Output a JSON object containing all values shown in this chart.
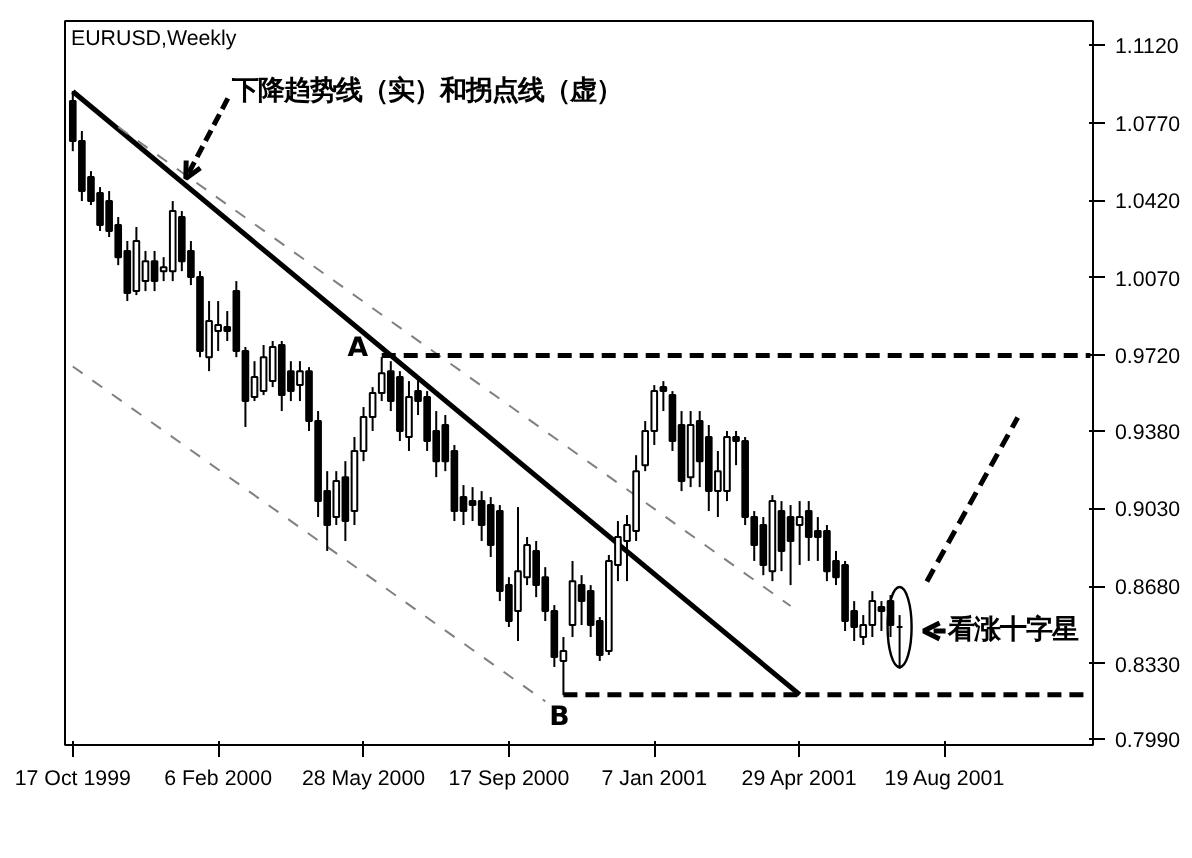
{
  "chart_data": {
    "type": "candlestick",
    "title": "EURUSD,Weekly",
    "x": [
      "1999-10-17",
      "1999-10-24",
      "1999-10-31",
      "1999-11-07",
      "1999-11-14",
      "1999-11-21",
      "1999-11-28",
      "1999-12-05",
      "1999-12-12",
      "1999-12-19",
      "1999-12-26",
      "2000-01-02",
      "2000-01-09",
      "2000-01-16",
      "2000-01-23",
      "2000-01-30",
      "2000-02-06",
      "2000-02-13",
      "2000-02-20",
      "2000-02-27",
      "2000-03-05",
      "2000-03-12",
      "2000-03-19",
      "2000-03-26",
      "2000-04-02",
      "2000-04-09",
      "2000-04-16",
      "2000-04-23",
      "2000-04-30",
      "2000-05-07",
      "2000-05-14",
      "2000-05-21",
      "2000-05-28",
      "2000-06-04",
      "2000-06-11",
      "2000-06-18",
      "2000-06-25",
      "2000-07-02",
      "2000-07-09",
      "2000-07-16",
      "2000-07-23",
      "2000-07-30",
      "2000-08-06",
      "2000-08-13",
      "2000-08-20",
      "2000-08-27",
      "2000-09-03",
      "2000-09-10",
      "2000-09-17",
      "2000-09-24",
      "2000-10-01",
      "2000-10-08",
      "2000-10-15",
      "2000-10-22",
      "2000-10-29",
      "2000-11-05",
      "2000-11-12",
      "2000-11-19",
      "2000-11-26",
      "2000-12-03",
      "2000-12-10",
      "2000-12-17",
      "2000-12-24",
      "2000-12-31",
      "2001-01-07",
      "2001-01-14",
      "2001-01-21",
      "2001-01-28",
      "2001-02-04",
      "2001-02-11",
      "2001-02-18",
      "2001-02-25",
      "2001-03-04",
      "2001-03-11",
      "2001-03-18",
      "2001-03-25",
      "2001-04-01",
      "2001-04-08",
      "2001-04-15",
      "2001-04-22",
      "2001-04-29",
      "2001-05-06",
      "2001-05-13",
      "2001-05-20",
      "2001-05-27",
      "2001-06-03",
      "2001-06-10",
      "2001-06-17",
      "2001-06-24",
      "2001-07-01",
      "2001-07-08",
      "2001-07-15"
    ],
    "ohlc": [
      [
        1.0867,
        1.0912,
        1.0641,
        1.0687
      ],
      [
        1.0687,
        1.0732,
        1.0416,
        1.0461
      ],
      [
        1.0524,
        1.0551,
        1.0398,
        1.0416
      ],
      [
        1.0452,
        1.0479,
        1.0281,
        1.0308
      ],
      [
        1.0416,
        1.0461,
        1.0254,
        1.0281
      ],
      [
        1.0308,
        1.0344,
        1.0127,
        1.0163
      ],
      [
        1.0191,
        1.0236,
        0.9965,
        1.0001
      ],
      [
        1.001,
        1.0299,
        0.9992,
        1.0236
      ],
      [
        1.0055,
        1.0191,
        1.001,
        1.0145
      ],
      [
        1.0145,
        1.0191,
        1.001,
        1.0055
      ],
      [
        1.01,
        1.0163,
        1.0055,
        1.0118
      ],
      [
        1.01,
        1.0416,
        1.0055,
        1.0371
      ],
      [
        1.0344,
        1.0371,
        1.01,
        1.0145
      ],
      [
        1.0191,
        1.0236,
        1.0037,
        1.0073
      ],
      [
        1.0073,
        1.01,
        0.9712,
        0.974
      ],
      [
        0.9712,
        0.9965,
        0.9649,
        0.9875
      ],
      [
        0.983,
        0.9965,
        0.974,
        0.9857
      ],
      [
        0.9848,
        0.992,
        0.9785,
        0.983
      ],
      [
        1.001,
        1.0055,
        0.9712,
        0.974
      ],
      [
        0.974,
        0.9758,
        0.9397,
        0.9514
      ],
      [
        0.9532,
        0.9694,
        0.9514,
        0.9622
      ],
      [
        0.9559,
        0.9767,
        0.9541,
        0.9712
      ],
      [
        0.9604,
        0.9785,
        0.9577,
        0.9758
      ],
      [
        0.9767,
        0.9785,
        0.9469,
        0.9541
      ],
      [
        0.9649,
        0.9694,
        0.9514,
        0.9559
      ],
      [
        0.9586,
        0.9694,
        0.9514,
        0.9649
      ],
      [
        0.9649,
        0.9667,
        0.9379,
        0.9424
      ],
      [
        0.9424,
        0.9469,
        0.8991,
        0.9063
      ],
      [
        0.9108,
        0.9198,
        0.8838,
        0.8955
      ],
      [
        0.8991,
        0.9198,
        0.8955,
        0.9153
      ],
      [
        0.9171,
        0.9243,
        0.8883,
        0.8973
      ],
      [
        0.9018,
        0.9352,
        0.8955,
        0.9289
      ],
      [
        0.9289,
        0.9487,
        0.9243,
        0.9442
      ],
      [
        0.9442,
        0.9577,
        0.9379,
        0.955
      ],
      [
        0.955,
        0.9712,
        0.9514,
        0.964
      ],
      [
        0.9649,
        0.9694,
        0.9469,
        0.9514
      ],
      [
        0.9622,
        0.9649,
        0.9334,
        0.9379
      ],
      [
        0.9352,
        0.9604,
        0.9289,
        0.9532
      ],
      [
        0.9559,
        0.9622,
        0.9451,
        0.9514
      ],
      [
        0.9532,
        0.9559,
        0.9289,
        0.9334
      ],
      [
        0.9379,
        0.9469,
        0.9171,
        0.9243
      ],
      [
        0.9406,
        0.9451,
        0.9198,
        0.9243
      ],
      [
        0.9289,
        0.9316,
        0.8973,
        0.9018
      ],
      [
        0.9081,
        0.9135,
        0.8955,
        0.9018
      ],
      [
        0.9063,
        0.9126,
        0.8973,
        0.9045
      ],
      [
        0.9063,
        0.9108,
        0.8883,
        0.8955
      ],
      [
        0.9045,
        0.9081,
        0.8811,
        0.8865
      ],
      [
        0.9018,
        0.9045,
        0.8612,
        0.8657
      ],
      [
        0.8684,
        0.872,
        0.8495,
        0.8522
      ],
      [
        0.8567,
        0.9036,
        0.8432,
        0.8747
      ],
      [
        0.872,
        0.8901,
        0.8684,
        0.8865
      ],
      [
        0.8838,
        0.8883,
        0.863,
        0.8684
      ],
      [
        0.872,
        0.8765,
        0.8522,
        0.8567
      ],
      [
        0.8567,
        0.8594,
        0.8315,
        0.836
      ],
      [
        0.8342,
        0.845,
        0.8188,
        0.8387
      ],
      [
        0.8504,
        0.8793,
        0.845,
        0.8702
      ],
      [
        0.8684,
        0.8729,
        0.8504,
        0.8612
      ],
      [
        0.8657,
        0.8684,
        0.845,
        0.8504
      ],
      [
        0.8522,
        0.854,
        0.8342,
        0.8369
      ],
      [
        0.8387,
        0.882,
        0.8369,
        0.8793
      ],
      [
        0.8775,
        0.8973,
        0.8702,
        0.8901
      ],
      [
        0.8883,
        0.9,
        0.8702,
        0.8955
      ],
      [
        0.8928,
        0.927,
        0.8883,
        0.9198
      ],
      [
        0.9225,
        0.9424,
        0.9198,
        0.9379
      ],
      [
        0.9379,
        0.9586,
        0.9316,
        0.9559
      ],
      [
        0.9577,
        0.9604,
        0.9469,
        0.9559
      ],
      [
        0.9541,
        0.9559,
        0.9289,
        0.9334
      ],
      [
        0.9406,
        0.9469,
        0.9108,
        0.9153
      ],
      [
        0.9171,
        0.9469,
        0.9126,
        0.9406
      ],
      [
        0.9424,
        0.9469,
        0.9126,
        0.9243
      ],
      [
        0.9352,
        0.9406,
        0.9018,
        0.9108
      ],
      [
        0.9108,
        0.9289,
        0.8991,
        0.9198
      ],
      [
        0.9108,
        0.9379,
        0.9063,
        0.9352
      ],
      [
        0.9352,
        0.9379,
        0.9225,
        0.9334
      ],
      [
        0.9334,
        0.9352,
        0.8955,
        0.8991
      ],
      [
        0.8991,
        0.9018,
        0.8793,
        0.8865
      ],
      [
        0.8955,
        0.8991,
        0.8729,
        0.8775
      ],
      [
        0.8747,
        0.909,
        0.8702,
        0.9063
      ],
      [
        0.9018,
        0.9063,
        0.8747,
        0.8838
      ],
      [
        0.8991,
        0.9045,
        0.8684,
        0.8883
      ],
      [
        0.8955,
        0.9063,
        0.8775,
        0.8991
      ],
      [
        0.9018,
        0.9063,
        0.8793,
        0.8901
      ],
      [
        0.8928,
        0.8991,
        0.8793,
        0.8901
      ],
      [
        0.8928,
        0.8955,
        0.8702,
        0.8747
      ],
      [
        0.8793,
        0.8838,
        0.8684,
        0.872
      ],
      [
        0.8775,
        0.8793,
        0.8477,
        0.8522
      ],
      [
        0.8567,
        0.8612,
        0.8432,
        0.8495
      ],
      [
        0.845,
        0.8549,
        0.8414,
        0.8504
      ],
      [
        0.8504,
        0.8657,
        0.845,
        0.8612
      ],
      [
        0.8585,
        0.8612,
        0.8477,
        0.8567
      ],
      [
        0.8612,
        0.8639,
        0.845,
        0.8504
      ],
      [
        0.8495,
        0.8549,
        0.8306,
        0.8495
      ]
    ],
    "series": [
      {
        "type": "line",
        "color": "#000000",
        "line_style": "solid",
        "x": [
          "1999-10-17",
          "2001-04-29"
        ],
        "values": [
          1.091,
          0.819
        ]
      },
      {
        "type": "line",
        "color": "#808080",
        "line_style": "dashed",
        "x": [
          "1999-11-21",
          "2001-04-22"
        ],
        "values": [
          1.075,
          0.859
        ]
      },
      {
        "type": "line",
        "color": "#808080",
        "line_style": "dashed",
        "x": [
          "1999-10-17",
          "2000-10-15"
        ],
        "values": [
          0.967,
          0.816
        ]
      },
      {
        "type": "line",
        "color": "#000000",
        "line_style": "dashed",
        "x": [
          "2000-06-11",
          "2001-12-09"
        ],
        "values": [
          0.972,
          0.972
        ]
      },
      {
        "type": "line",
        "color": "#000000",
        "line_style": "dashed",
        "x": [
          "2000-10-29",
          "2001-12-09"
        ],
        "values": [
          0.819,
          0.819
        ]
      },
      {
        "type": "line",
        "color": "#000000",
        "line_style": "dashed",
        "x": [
          "2001-08-05",
          "2001-10-14"
        ],
        "values": [
          0.87,
          0.944
        ]
      }
    ],
    "annotations": [
      {
        "text": "下降趋势线（实）和拐点线（虚）",
        "x": "2000-01-09",
        "y": 1.05
      },
      {
        "text": "A",
        "x": "2000-06-11",
        "y": 0.972
      },
      {
        "text": "B",
        "x": "2000-10-29",
        "y": 0.819
      },
      {
        "text": "看涨十字星",
        "x": "2001-07-15",
        "y": 0.8495
      }
    ],
    "xlim": [
      "1999-10-11",
      "2001-12-11"
    ],
    "ylim": [
      0.7963,
      1.1228
    ],
    "xticks": [
      {
        "value": "1999-10-17",
        "label": "17 Oct 1999"
      },
      {
        "value": "2000-02-06",
        "label": "6 Feb 2000"
      },
      {
        "value": "2000-05-28",
        "label": "28 May 2000"
      },
      {
        "value": "2000-09-17",
        "label": "17 Sep 2000"
      },
      {
        "value": "2001-01-07",
        "label": "7 Jan 2001"
      },
      {
        "value": "2001-04-29",
        "label": "29 Apr 2001"
      },
      {
        "value": "2001-08-19",
        "label": "19 Aug 2001"
      }
    ],
    "yticks": [
      {
        "value": 1.112,
        "label": "1.1120"
      },
      {
        "value": 1.077,
        "label": "1.0770"
      },
      {
        "value": 1.042,
        "label": "1.0420"
      },
      {
        "value": 1.007,
        "label": "1.0070"
      },
      {
        "value": 0.972,
        "label": "0.9720"
      },
      {
        "value": 0.938,
        "label": "0.9380"
      },
      {
        "value": 0.903,
        "label": "0.9030"
      },
      {
        "value": 0.868,
        "label": "0.8680"
      },
      {
        "value": 0.833,
        "label": "0.8330"
      },
      {
        "value": 0.799,
        "label": "0.7990"
      }
    ],
    "grid": false
  }
}
